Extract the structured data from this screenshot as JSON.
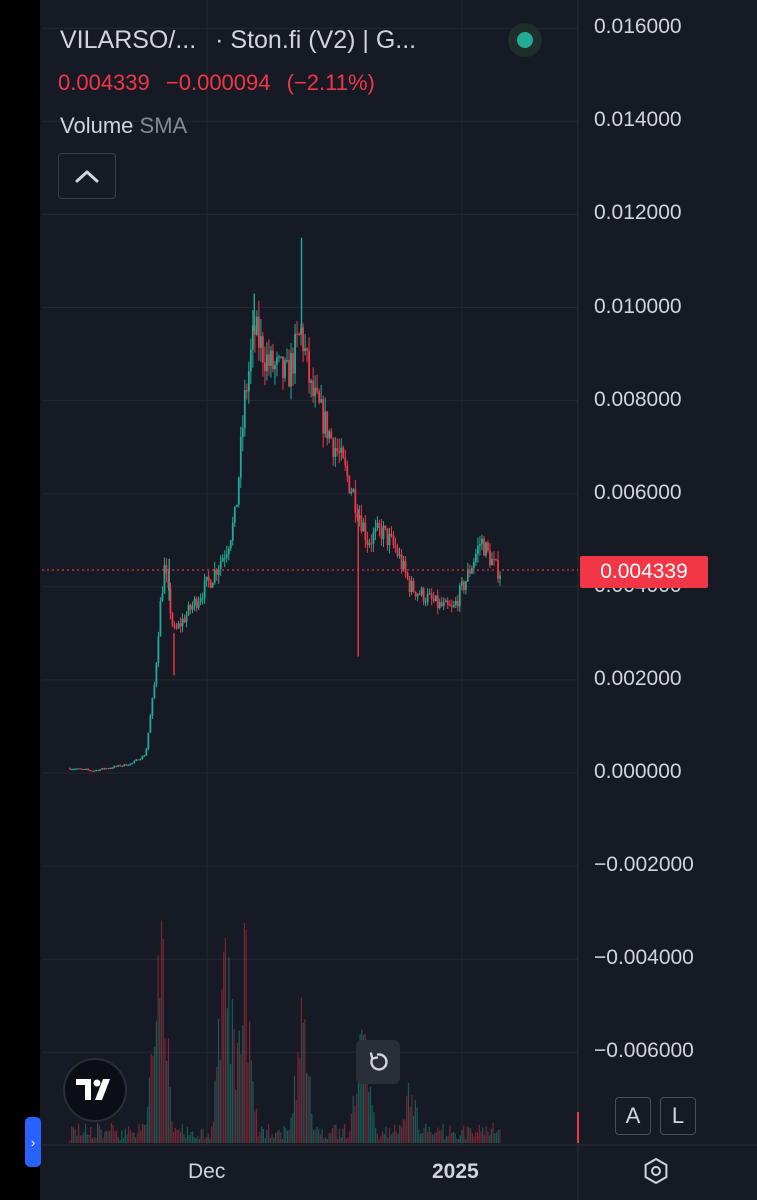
{
  "header": {
    "symbol": "VILARSO/...",
    "exchange": "· Ston.fi (V2) | G...",
    "status_color": "#22ab94"
  },
  "quote": {
    "last": "0.004339",
    "change": "−0.000094",
    "change_pct": "(−2.11%)",
    "color": "#f23645"
  },
  "indicator": {
    "name": "Volume",
    "param": "SMA"
  },
  "icons": {
    "collapse": "chevron-up-icon",
    "logo": "tradingview-logo",
    "reset": "reset-chart-icon",
    "settings": "settings-hexagon-icon",
    "side": "chevron-right-icon"
  },
  "buttons": {
    "auto": "A",
    "log": "L",
    "side_tab": "›"
  },
  "colors": {
    "up": "#22ab94",
    "down": "#f23645",
    "background": "#161a25",
    "accent": "#2962ff"
  },
  "chart_data": {
    "type": "candlestick",
    "y_ticks": [
      "0.016000",
      "0.014000",
      "0.012000",
      "0.010000",
      "0.008000",
      "0.006000",
      "0.004000",
      "0.002000",
      "0.000000",
      "−0.002000",
      "−0.004000",
      "−0.006000"
    ],
    "x_ticks": [
      "Dec",
      "2025"
    ],
    "last_price_label": "0.004339",
    "last_price": 0.004339,
    "ylim": [
      -0.007,
      0.0165
    ],
    "grid": true,
    "price_path": [
      [
        0,
        0.0001
      ],
      [
        0.05,
        5e-05
      ],
      [
        0.13,
        0.0002
      ],
      [
        0.16,
        0.0004
      ],
      [
        0.18,
        0.002
      ],
      [
        0.19,
        0.0035
      ],
      [
        0.2,
        0.0044
      ],
      [
        0.22,
        0.003
      ],
      [
        0.26,
        0.0036
      ],
      [
        0.3,
        0.0042
      ],
      [
        0.33,
        0.0048
      ],
      [
        0.35,
        0.0055
      ],
      [
        0.37,
        0.008
      ],
      [
        0.39,
        0.0095
      ],
      [
        0.42,
        0.0088
      ],
      [
        0.46,
        0.0085
      ],
      [
        0.49,
        0.0095
      ],
      [
        0.51,
        0.0082
      ],
      [
        0.54,
        0.0075
      ],
      [
        0.57,
        0.0068
      ],
      [
        0.6,
        0.006
      ],
      [
        0.63,
        0.005
      ],
      [
        0.66,
        0.0052
      ],
      [
        0.69,
        0.0048
      ],
      [
        0.72,
        0.004
      ],
      [
        0.75,
        0.0038
      ],
      [
        0.78,
        0.0036
      ],
      [
        0.81,
        0.0035
      ],
      [
        0.84,
        0.0042
      ],
      [
        0.87,
        0.005
      ],
      [
        0.9,
        0.0044
      ],
      [
        0.91,
        0.004339
      ]
    ],
    "spikes": [
      [
        0.21,
        0.0046
      ],
      [
        0.22,
        0.0021
      ],
      [
        0.39,
        0.0103
      ],
      [
        0.49,
        0.0115
      ],
      [
        0.61,
        0.0025
      ]
    ],
    "volume_peaks": [
      [
        0.19,
        1.0
      ],
      [
        0.33,
        0.95
      ],
      [
        0.37,
        0.87
      ],
      [
        0.49,
        0.6
      ],
      [
        0.62,
        0.58
      ],
      [
        0.72,
        0.25
      ]
    ]
  }
}
